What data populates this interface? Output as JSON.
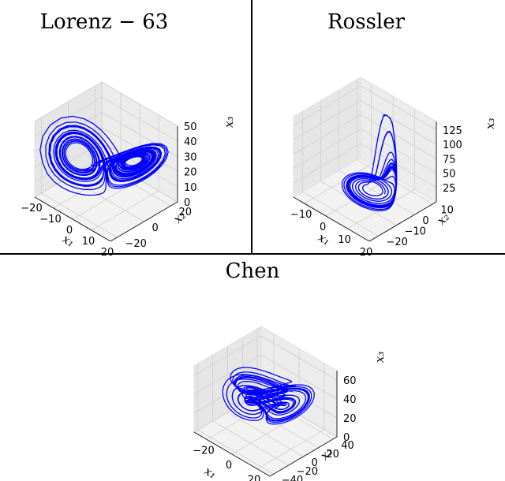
{
  "colors": {
    "trajectory": "#0000ff",
    "divider": "#000000"
  },
  "chart_data": [
    {
      "type": "line3d",
      "title": "Lorenz − 63",
      "xlabel": "x₁",
      "ylabel": "x₂",
      "zlabel": "x₃",
      "xlim": [
        -20,
        20
      ],
      "ylim": [
        -25,
        25
      ],
      "zlim": [
        0,
        50
      ],
      "xticks": [
        -20,
        -10,
        0,
        10,
        20
      ],
      "yticks": [
        -20,
        0,
        20
      ],
      "zticks": [
        0,
        10,
        20,
        30,
        40,
        50
      ],
      "grid": true,
      "series": [
        {
          "system": "lorenz63"
        }
      ]
    },
    {
      "type": "line3d",
      "title": "Rossler",
      "xlabel": "x₁",
      "ylabel": "x₂",
      "zlabel": "x₃",
      "xlim": [
        -15,
        20
      ],
      "ylim": [
        -25,
        12
      ],
      "zlim": [
        0,
        140
      ],
      "xticks": [
        -10,
        0,
        10,
        20
      ],
      "yticks": [
        -20,
        -10,
        0,
        10
      ],
      "zticks": [
        25,
        50,
        75,
        100,
        125
      ],
      "grid": true,
      "series": [
        {
          "system": "rossler"
        }
      ]
    },
    {
      "type": "line3d",
      "title": "Chen",
      "xlabel": "x₁",
      "ylabel": "x₂",
      "zlabel": "x₃",
      "xlim": [
        -30,
        30
      ],
      "ylim": [
        -45,
        45
      ],
      "zlim": [
        0,
        70
      ],
      "xticks": [
        -20,
        0,
        20
      ],
      "yticks": [
        -40,
        -20,
        0,
        20,
        40
      ],
      "zticks": [
        0,
        20,
        40,
        60
      ],
      "grid": true,
      "series": [
        {
          "system": "chen"
        }
      ]
    }
  ]
}
